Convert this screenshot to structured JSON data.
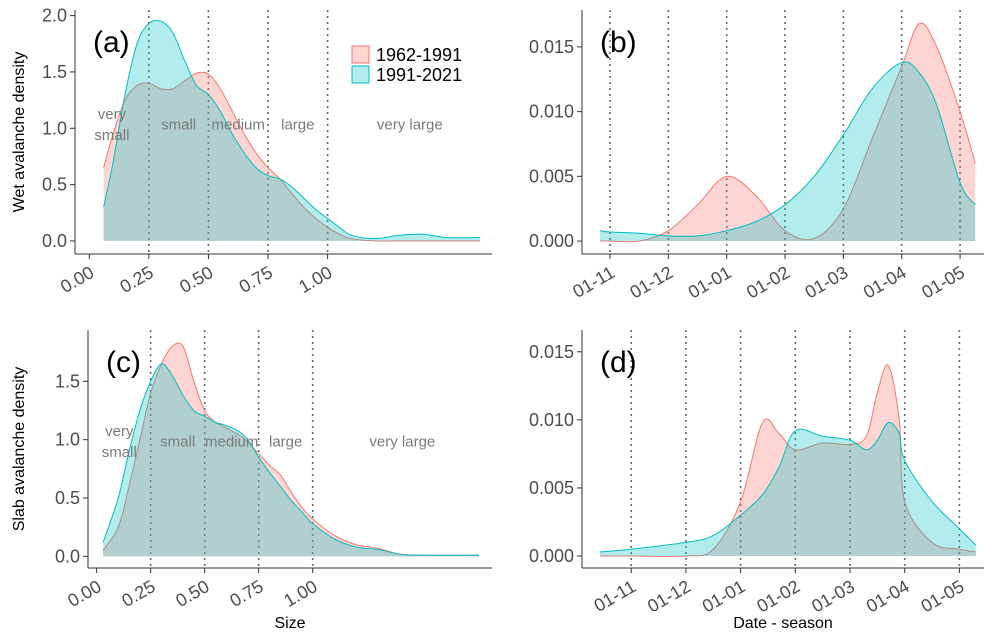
{
  "chart_data": [
    {
      "type": "area",
      "panel_label": "(a)",
      "y_label": "Wet avalanche density",
      "legend": "top-right",
      "x": [
        0.06,
        0.1,
        0.15,
        0.2,
        0.25,
        0.3,
        0.35,
        0.4,
        0.45,
        0.5,
        0.55,
        0.6,
        0.65,
        0.7,
        0.75,
        0.8,
        0.85,
        0.9,
        0.95,
        1.0,
        1.05,
        1.1,
        1.2,
        1.3,
        1.4,
        1.5,
        1.64
      ],
      "series": [
        {
          "name": "1962-1991",
          "color": "#F8766D",
          "values": [
            0.65,
            0.95,
            1.25,
            1.38,
            1.4,
            1.35,
            1.35,
            1.42,
            1.49,
            1.48,
            1.35,
            1.15,
            0.95,
            0.78,
            0.65,
            0.55,
            0.42,
            0.3,
            0.2,
            0.12,
            0.06,
            0.02,
            0.0,
            0.0,
            0.0,
            0.0,
            0.0
          ]
        },
        {
          "name": "1991-2021",
          "color": "#00BFC4",
          "values": [
            0.3,
            0.7,
            1.3,
            1.75,
            1.93,
            1.95,
            1.85,
            1.6,
            1.38,
            1.3,
            1.15,
            0.95,
            0.78,
            0.65,
            0.58,
            0.55,
            0.48,
            0.38,
            0.28,
            0.2,
            0.12,
            0.05,
            0.02,
            0.05,
            0.06,
            0.03,
            0.03
          ]
        }
      ],
      "xlim": [
        -0.06,
        1.69
      ],
      "ylim": [
        -0.116,
        2.05
      ],
      "xticks": [
        {
          "value": 0,
          "label": "0.00"
        },
        {
          "value": 0.25,
          "label": "0.25"
        },
        {
          "value": 0.5,
          "label": "0.50"
        },
        {
          "value": 0.75,
          "label": "0.75"
        },
        {
          "value": 1,
          "label": "1.00"
        }
      ],
      "yticks": [
        {
          "value": 0,
          "label": "0.0"
        },
        {
          "value": 0.5,
          "label": "0.5"
        },
        {
          "value": 1,
          "label": "1.0"
        },
        {
          "value": 1.5,
          "label": "1.5"
        },
        {
          "value": 2,
          "label": "2.0"
        }
      ],
      "vlines": [
        0.25,
        0.5,
        0.75,
        1.0
      ],
      "class_labels": [
        "very small",
        "small",
        "medium",
        "large",
        "very large"
      ]
    },
    {
      "type": "area",
      "panel_label": "(b)",
      "x": [
        -0.17,
        0,
        0.5,
        1,
        1.5,
        2,
        2.5,
        3,
        3.5,
        4,
        4.5,
        5,
        5.3,
        5.6,
        6,
        6.26
      ],
      "series": [
        {
          "color": "#F8766D",
          "values": [
            0,
            0,
            0,
            0.0008,
            0.0028,
            0.005,
            0.0035,
            0.0008,
            0.0002,
            0.0025,
            0.008,
            0.0135,
            0.0168,
            0.015,
            0.01,
            0.006
          ]
        },
        {
          "color": "#00BFC4",
          "values": [
            0.0008,
            0.0007,
            0.0006,
            0.0004,
            0.0004,
            0.0008,
            0.0015,
            0.0028,
            0.005,
            0.0082,
            0.0118,
            0.0138,
            0.013,
            0.0105,
            0.0045,
            0.0028
          ]
        }
      ],
      "xlim": [
        -0.48,
        6.41
      ],
      "ylim": [
        -0.001,
        0.01785
      ],
      "xticks": [
        {
          "value": 0,
          "label": "01-11"
        },
        {
          "value": 1,
          "label": "01-12"
        },
        {
          "value": 2,
          "label": "01-01"
        },
        {
          "value": 3,
          "label": "01-02"
        },
        {
          "value": 4,
          "label": "01-03"
        },
        {
          "value": 5,
          "label": "01-04"
        },
        {
          "value": 6,
          "label": "01-05"
        }
      ],
      "yticks": [
        {
          "value": 0,
          "label": "0.000"
        },
        {
          "value": 0.005,
          "label": "0.005"
        },
        {
          "value": 0.01,
          "label": "0.010"
        },
        {
          "value": 0.015,
          "label": "0.015"
        }
      ],
      "vlines": [
        0,
        1,
        2,
        3,
        4,
        5,
        6
      ]
    },
    {
      "type": "area",
      "panel_label": "(c)",
      "y_label": "Slab avalanche density",
      "x_label": "Size",
      "x": [
        0.03,
        0.1,
        0.15,
        0.2,
        0.25,
        0.3,
        0.35,
        0.4,
        0.45,
        0.5,
        0.55,
        0.6,
        0.65,
        0.7,
        0.75,
        0.8,
        0.85,
        0.9,
        0.95,
        1.0,
        1.1,
        1.2,
        1.3,
        1.4,
        1.5,
        1.77
      ],
      "series": [
        {
          "color": "#F8766D",
          "values": [
            0.05,
            0.25,
            0.6,
            1.0,
            1.4,
            1.65,
            1.8,
            1.8,
            1.5,
            1.25,
            1.15,
            1.1,
            1.05,
            0.98,
            0.88,
            0.78,
            0.7,
            0.55,
            0.42,
            0.32,
            0.18,
            0.1,
            0.07,
            0.02,
            0.01,
            0.01
          ]
        },
        {
          "color": "#00BFC4",
          "values": [
            0.12,
            0.5,
            0.9,
            1.25,
            1.5,
            1.65,
            1.55,
            1.38,
            1.25,
            1.2,
            1.15,
            1.12,
            1.08,
            1.0,
            0.85,
            0.72,
            0.6,
            0.48,
            0.38,
            0.28,
            0.15,
            0.08,
            0.06,
            0.02,
            0.01,
            0.01
          ]
        }
      ],
      "xlim": [
        -0.04,
        1.83
      ],
      "ylim": [
        -0.1,
        1.94
      ],
      "xticks": [
        {
          "value": 0,
          "label": "0.00"
        },
        {
          "value": 0.25,
          "label": "0.25"
        },
        {
          "value": 0.5,
          "label": "0.50"
        },
        {
          "value": 0.75,
          "label": "0.75"
        },
        {
          "value": 1,
          "label": "1.00"
        }
      ],
      "yticks": [
        {
          "value": 0,
          "label": "0.0"
        },
        {
          "value": 0.5,
          "label": "0.5"
        },
        {
          "value": 1,
          "label": "1.0"
        },
        {
          "value": 1.5,
          "label": "1.5"
        }
      ],
      "vlines": [
        0.25,
        0.5,
        0.75,
        1.0
      ],
      "class_labels": [
        "very small",
        "small",
        "medium",
        "large",
        "very large"
      ]
    },
    {
      "type": "area",
      "panel_label": "(d)",
      "x_label": "Date - season",
      "x": [
        -0.57,
        0,
        1,
        1.5,
        2,
        2.4,
        2.7,
        3,
        3.5,
        4,
        4.3,
        4.5,
        4.7,
        4.9,
        5,
        5.5,
        6,
        6.3
      ],
      "series": [
        {
          "color": "#F8766D",
          "values": [
            0,
            0,
            0,
            0.0005,
            0.004,
            0.0098,
            0.009,
            0.0078,
            0.0083,
            0.0082,
            0.0088,
            0.012,
            0.014,
            0.01,
            0.004,
            0.001,
            0.0005,
            0.0003
          ]
        },
        {
          "color": "#00BFC4",
          "values": [
            0.0003,
            0.0005,
            0.001,
            0.0015,
            0.003,
            0.0045,
            0.0065,
            0.0092,
            0.0088,
            0.0085,
            0.0078,
            0.0085,
            0.0098,
            0.009,
            0.007,
            0.004,
            0.002,
            0.0008
          ]
        }
      ],
      "xlim": [
        -0.9,
        6.45
      ],
      "ylim": [
        -0.00088,
        0.0166
      ],
      "xticks": [
        {
          "value": 0,
          "label": "01-11"
        },
        {
          "value": 1,
          "label": "01-12"
        },
        {
          "value": 2,
          "label": "01-01"
        },
        {
          "value": 3,
          "label": "01-02"
        },
        {
          "value": 4,
          "label": "01-03"
        },
        {
          "value": 5,
          "label": "01-04"
        },
        {
          "value": 6,
          "label": "01-05"
        }
      ],
      "yticks": [
        {
          "value": 0,
          "label": "0.000"
        },
        {
          "value": 0.005,
          "label": "0.005"
        },
        {
          "value": 0.01,
          "label": "0.010"
        },
        {
          "value": 0.015,
          "label": "0.015"
        }
      ],
      "vlines": [
        0,
        1,
        2,
        3,
        4,
        5,
        6
      ]
    }
  ]
}
